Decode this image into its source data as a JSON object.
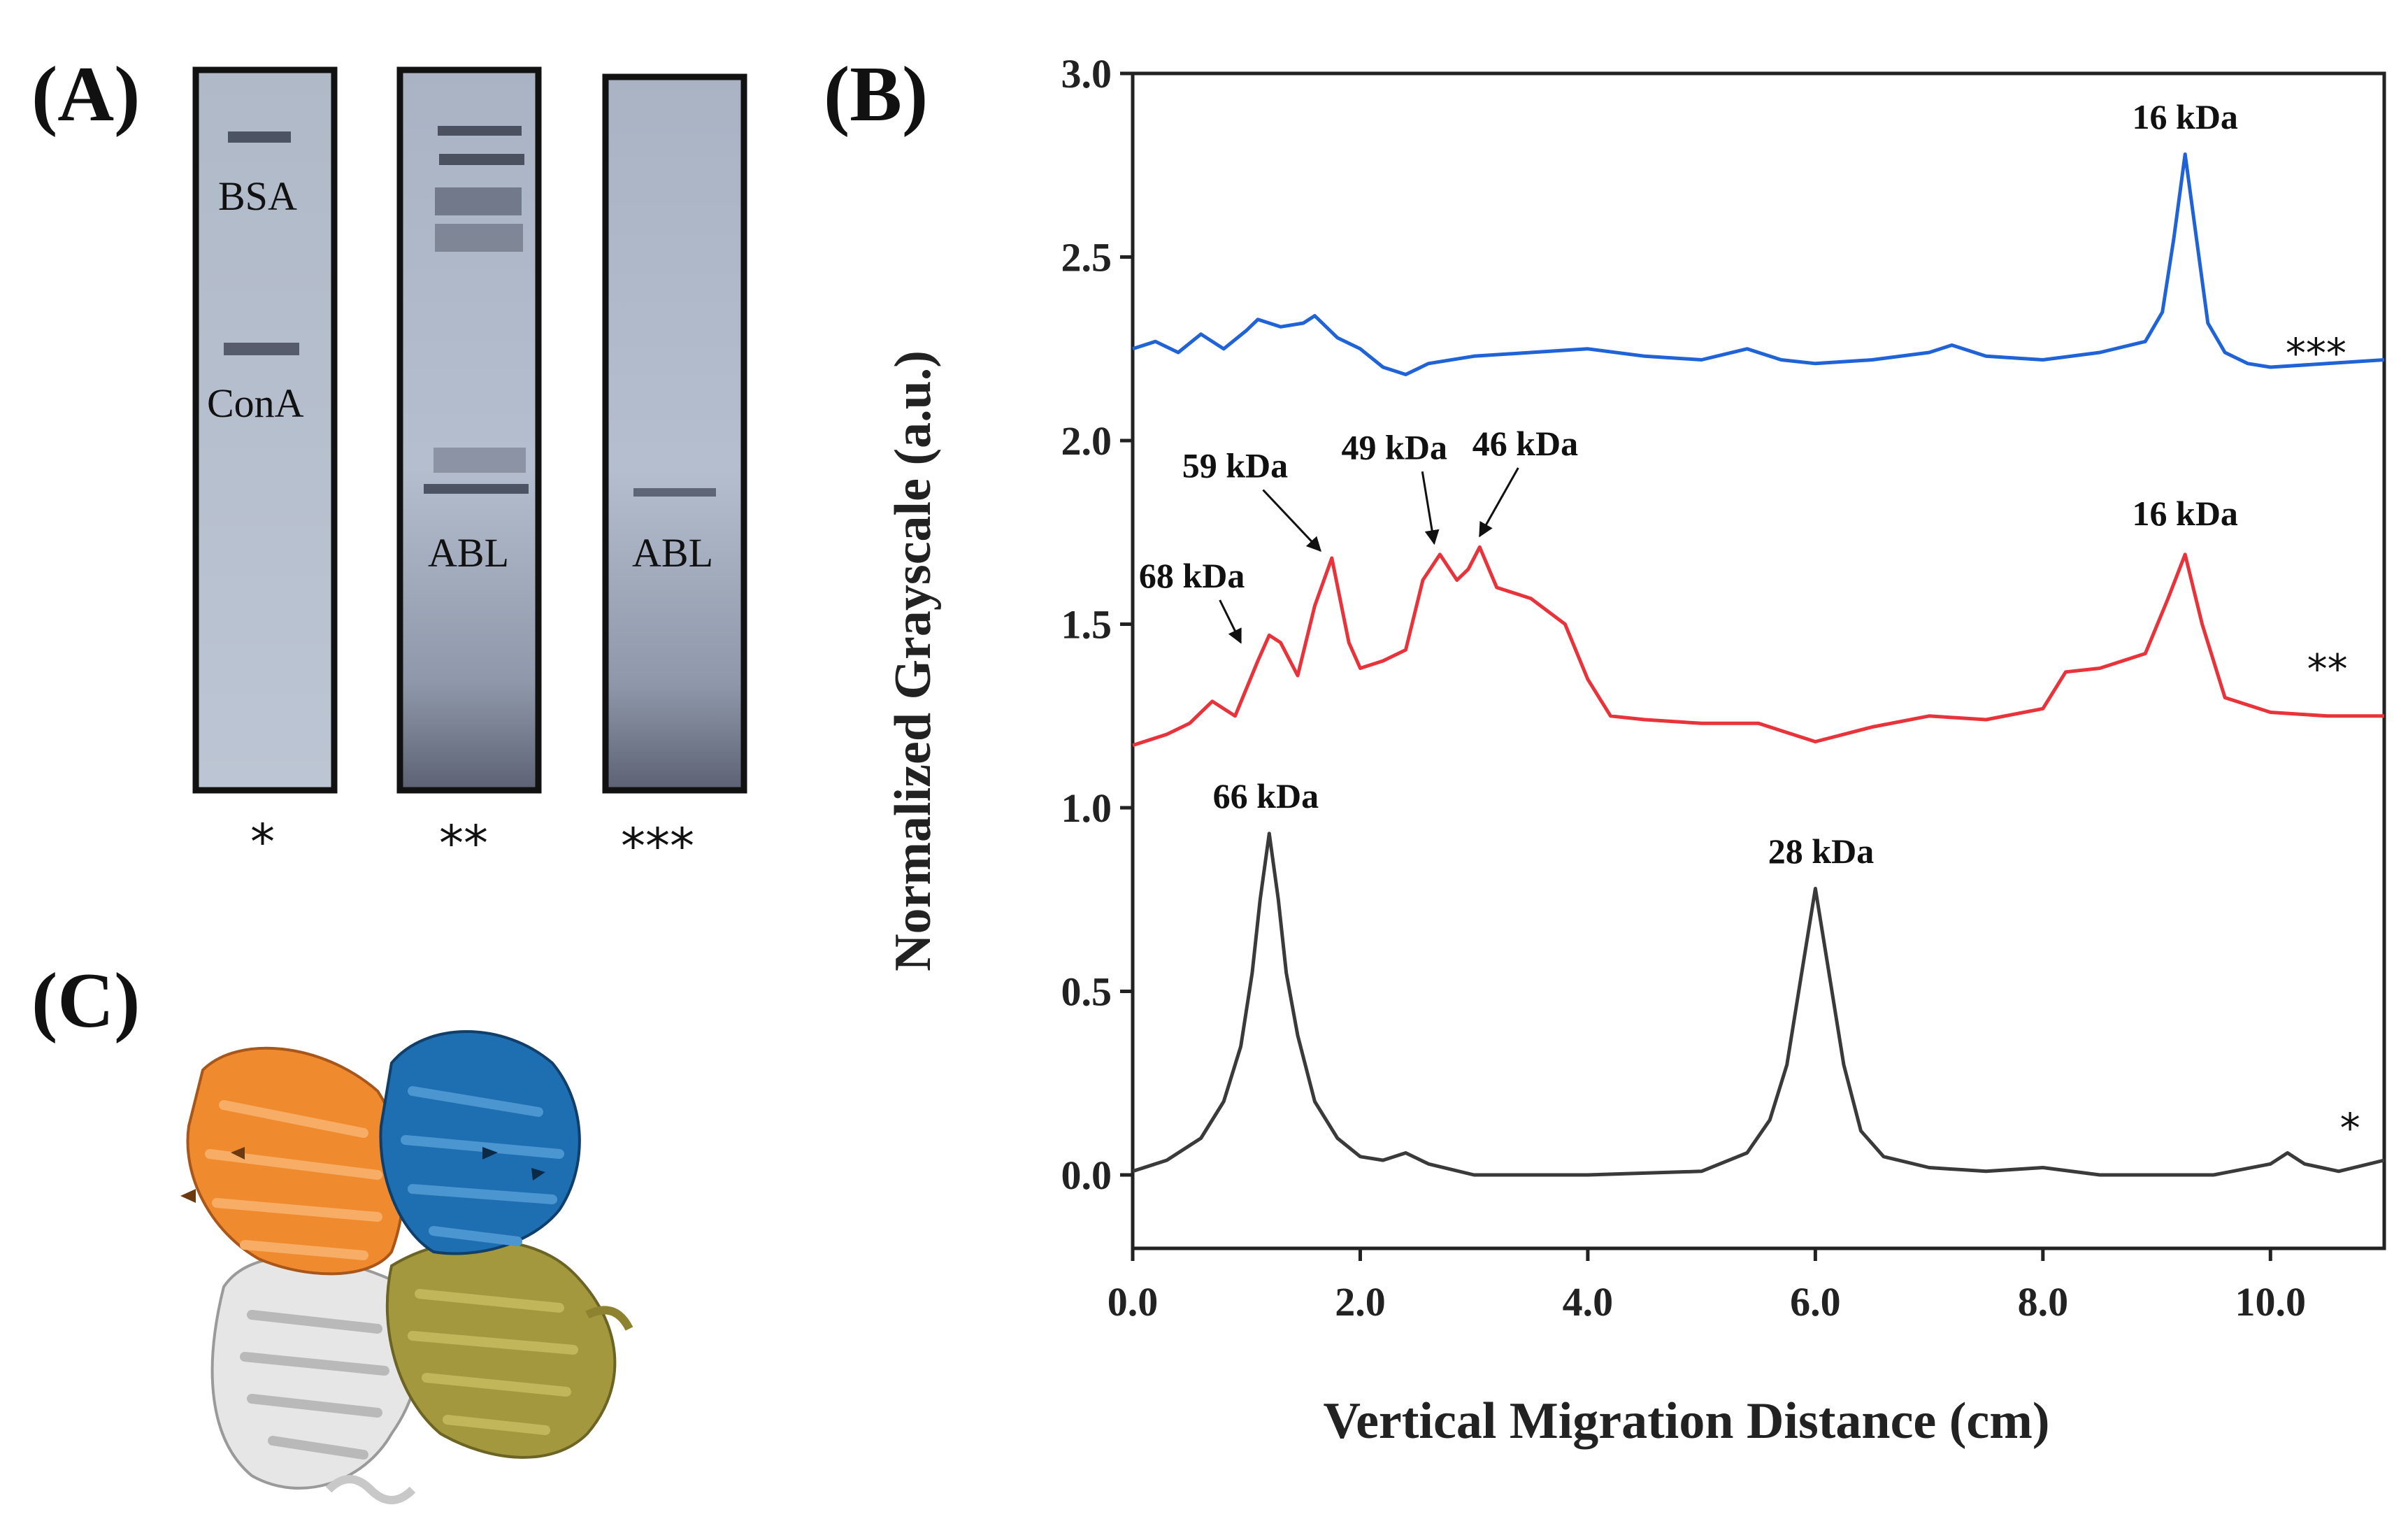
{
  "panels": {
    "a_label": "(A)",
    "b_label": "(B)",
    "c_label": "(C)"
  },
  "gel": {
    "lanes": [
      {
        "labels": [
          "BSA",
          "ConA"
        ],
        "marker": "*"
      },
      {
        "labels": [
          "ABL"
        ],
        "marker": "**"
      },
      {
        "labels": [
          "ABL"
        ],
        "marker": "***"
      }
    ]
  },
  "structure": {
    "chain_colors": [
      "#f28a30",
      "#1f6fb0",
      "#e8e8e8",
      "#a69a3e"
    ]
  },
  "chart_data": {
    "type": "line",
    "title": "",
    "xlabel": "Vertical Migration Distance (cm)",
    "ylabel": "Normalized Grayscale (a.u.)",
    "xlim": [
      0,
      11
    ],
    "ylim": [
      -0.2,
      3.0
    ],
    "xticks": [
      0,
      2,
      4,
      6,
      8,
      10
    ],
    "xtick_labels": [
      "0.0",
      "2.0",
      "4.0",
      "6.0",
      "8.0",
      "10.0"
    ],
    "yticks": [
      0,
      0.5,
      1.0,
      1.5,
      2.0,
      2.5,
      3.0
    ],
    "ytick_labels": [
      "0.0",
      "0.5",
      "1.0",
      "1.5",
      "2.0",
      "2.5",
      "3.0"
    ],
    "grid": false,
    "series": [
      {
        "name": "***",
        "color": "#1f63d6",
        "marker_label": "***",
        "marker_pos": [
          10.4,
          2.2
        ],
        "x": [
          0.0,
          0.2,
          0.4,
          0.6,
          0.8,
          1.0,
          1.1,
          1.3,
          1.5,
          1.6,
          1.8,
          2.0,
          2.2,
          2.4,
          2.6,
          3.0,
          3.5,
          4.0,
          4.5,
          5.0,
          5.4,
          5.7,
          6.0,
          6.5,
          7.0,
          7.2,
          7.5,
          8.0,
          8.5,
          8.9,
          9.05,
          9.15,
          9.25,
          9.35,
          9.45,
          9.6,
          9.8,
          10.0,
          10.5,
          11.0
        ],
        "y": [
          2.25,
          2.27,
          2.24,
          2.29,
          2.25,
          2.3,
          2.33,
          2.31,
          2.32,
          2.34,
          2.28,
          2.25,
          2.2,
          2.18,
          2.21,
          2.23,
          2.24,
          2.25,
          2.23,
          2.22,
          2.25,
          2.22,
          2.21,
          2.22,
          2.24,
          2.26,
          2.23,
          2.22,
          2.24,
          2.27,
          2.35,
          2.55,
          2.78,
          2.55,
          2.32,
          2.24,
          2.21,
          2.2,
          2.21,
          2.22
        ]
      },
      {
        "name": "**",
        "color": "#e8333a",
        "marker_label": "**",
        "marker_pos": [
          10.5,
          1.34
        ],
        "x": [
          0.0,
          0.3,
          0.5,
          0.7,
          0.9,
          1.1,
          1.2,
          1.3,
          1.45,
          1.6,
          1.75,
          1.9,
          2.0,
          2.2,
          2.4,
          2.55,
          2.7,
          2.85,
          2.95,
          3.05,
          3.2,
          3.5,
          3.8,
          4.0,
          4.2,
          4.5,
          5.0,
          5.5,
          6.0,
          6.5,
          7.0,
          7.5,
          8.0,
          8.2,
          8.5,
          8.9,
          9.1,
          9.25,
          9.4,
          9.6,
          10.0,
          10.5,
          11.0
        ],
        "y": [
          1.17,
          1.2,
          1.23,
          1.29,
          1.25,
          1.4,
          1.47,
          1.45,
          1.36,
          1.55,
          1.68,
          1.45,
          1.38,
          1.4,
          1.43,
          1.62,
          1.69,
          1.62,
          1.65,
          1.71,
          1.6,
          1.57,
          1.5,
          1.35,
          1.25,
          1.24,
          1.23,
          1.23,
          1.18,
          1.22,
          1.25,
          1.24,
          1.27,
          1.37,
          1.38,
          1.42,
          1.57,
          1.69,
          1.5,
          1.3,
          1.26,
          1.25,
          1.25
        ]
      },
      {
        "name": "*",
        "color": "#3a3a3a",
        "marker_label": "*",
        "marker_pos": [
          10.7,
          0.09
        ],
        "x": [
          0.0,
          0.3,
          0.6,
          0.8,
          0.95,
          1.05,
          1.12,
          1.2,
          1.28,
          1.35,
          1.45,
          1.6,
          1.8,
          2.0,
          2.2,
          2.4,
          2.6,
          3.0,
          4.0,
          5.0,
          5.4,
          5.6,
          5.75,
          5.88,
          6.0,
          6.12,
          6.25,
          6.4,
          6.6,
          7.0,
          7.5,
          8.0,
          8.5,
          9.0,
          9.5,
          10.0,
          10.15,
          10.3,
          10.6,
          11.0
        ],
        "y": [
          0.01,
          0.04,
          0.1,
          0.2,
          0.35,
          0.55,
          0.75,
          0.93,
          0.75,
          0.55,
          0.38,
          0.2,
          0.1,
          0.05,
          0.04,
          0.06,
          0.03,
          0.0,
          0.0,
          0.01,
          0.06,
          0.15,
          0.3,
          0.55,
          0.78,
          0.55,
          0.3,
          0.12,
          0.05,
          0.02,
          0.01,
          0.02,
          0.0,
          0.0,
          0.0,
          0.03,
          0.06,
          0.03,
          0.01,
          0.04
        ]
      }
    ],
    "annotations": [
      {
        "text": "16 kDa",
        "x": 9.25,
        "y": 2.85,
        "arrow": false
      },
      {
        "text": "16 kDa",
        "x": 9.25,
        "y": 1.77,
        "arrow": false
      },
      {
        "text": "59 kDa",
        "x": 0.9,
        "y": 1.9,
        "arrow": true,
        "tip": [
          1.65,
          1.7
        ]
      },
      {
        "text": "49 kDa",
        "x": 2.3,
        "y": 1.95,
        "arrow": true,
        "tip": [
          2.65,
          1.72
        ]
      },
      {
        "text": "46 kDa",
        "x": 3.45,
        "y": 1.96,
        "arrow": true,
        "tip": [
          3.05,
          1.74
        ]
      },
      {
        "text": "68 kDa",
        "x": 0.52,
        "y": 1.6,
        "arrow": true,
        "tip": [
          0.95,
          1.45
        ]
      },
      {
        "text": "66 kDa",
        "x": 1.17,
        "y": 1.0,
        "arrow": false
      },
      {
        "text": "28 kDa",
        "x": 6.05,
        "y": 0.85,
        "arrow": false
      }
    ]
  }
}
